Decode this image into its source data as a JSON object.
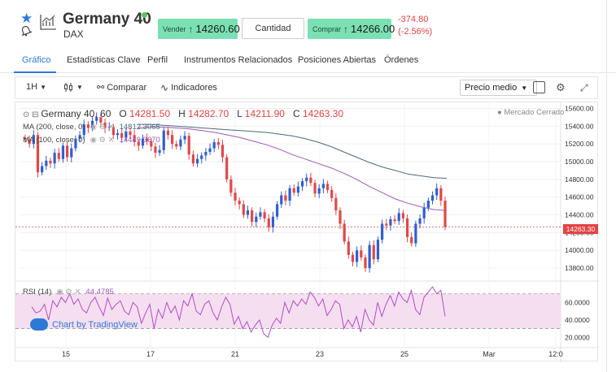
{
  "instrument": {
    "title": "Germany 40",
    "subtitle": "DAX"
  },
  "trade": {
    "sell_label": "Vender",
    "sell_price": "14260.60",
    "quantity_label": "Cantidad",
    "buy_label": "Comprar",
    "buy_price": "14266.00",
    "change_abs": "-374.80",
    "change_pct": "(-2.56%)",
    "accent_color": "#7be0b3",
    "negative_color": "#e24343"
  },
  "tabs": [
    {
      "label": "Gráfico",
      "active": true
    },
    {
      "label": "Estadísticas Clave"
    },
    {
      "label": "Perfil"
    },
    {
      "label": "Instrumentos Relacionados"
    },
    {
      "label": "Posiciones Abiertas"
    },
    {
      "label": "Órdenes"
    }
  ],
  "toolbar": {
    "interval": "1H",
    "compare": "Comparar",
    "indicators": "Indicadores",
    "price_type": "Precio medio"
  },
  "legend": {
    "symbol": "Germany 40, 60",
    "o_label": "O",
    "o_value": "14281.50",
    "h_label": "H",
    "h_value": "14282.70",
    "l_label": "L",
    "l_value": "14211.90",
    "c_label": "C",
    "c_value": "14263.30",
    "ma200_label": "MA (200, close, 0)",
    "ma200_value": "14812.3065",
    "ma100_label": "MA (100, close, 0)",
    "ma100_value": "14449.3670",
    "market_status": "Mercado Cerrado",
    "rsi_label": "RSI (14)",
    "rsi_value": "44.4785",
    "watermark": "Chart by TradingView"
  },
  "chart_data": {
    "type": "candlestick",
    "y_ticks": [
      "15600.00",
      "15400.00",
      "15200.00",
      "15000.00",
      "14800.00",
      "14600.00",
      "14400.00",
      "14200.00",
      "14000.00",
      "13800.00"
    ],
    "ylim": [
      13700,
      15650
    ],
    "x_ticks": [
      "15",
      "17",
      "21",
      "23",
      "25",
      "Mar",
      "12:0"
    ],
    "last_price": "14263.30",
    "rsi": {
      "y_ticks": [
        "60.0000",
        "40.0000",
        "20.0000"
      ],
      "ylim": [
        10,
        80
      ],
      "levels": [
        70,
        30
      ],
      "last": 44.4785
    },
    "series": [
      {
        "name": "MA (200, close, 0)",
        "color": "#4a6c7a"
      },
      {
        "name": "MA (100, close, 0)",
        "color": "#9b59b6"
      }
    ],
    "close_path": [
      15250,
      15200,
      15300,
      14880,
      14950,
      15010,
      14980,
      15100,
      15030,
      15180,
      15050,
      15150,
      15260,
      15300,
      15420,
      15380,
      15460,
      15500,
      15440,
      15380,
      15390,
      15300,
      15320,
      15270,
      15340,
      15300,
      15220,
      15180,
      15260,
      15230,
      15170,
      15100,
      15130,
      15350,
      15300,
      15200,
      15170,
      15250,
      15290,
      15080,
      14980,
      15030,
      15070,
      15110,
      15150,
      15220,
      15190,
      15050,
      14800,
      14650,
      14560,
      14520,
      14400,
      14450,
      14320,
      14380,
      14430,
      14360,
      14260,
      14380,
      14520,
      14620,
      14560,
      14700,
      14650,
      14720,
      14780,
      14820,
      14760,
      14640,
      14700,
      14750,
      14680,
      14590,
      14450,
      14300,
      14100,
      13950,
      13870,
      14000,
      13920,
      13800,
      14060,
      13900,
      14120,
      14300,
      14280,
      14350,
      14330,
      14420,
      14360,
      14150,
      14080,
      14300,
      14360,
      14480,
      14560,
      14620,
      14700,
      14560,
      14263
    ],
    "ma200_path": [
      15420,
      15420,
      15410,
      15400,
      15390,
      15380,
      15370,
      15360,
      15350,
      15340,
      15330,
      15310,
      15290,
      15260,
      15220,
      15170,
      15110,
      15050,
      14990,
      14940,
      14900,
      14860,
      14840,
      14820,
      14812
    ],
    "ma100_path": [
      15380,
      15390,
      15390,
      15380,
      15370,
      15350,
      15330,
      15300,
      15270,
      15230,
      15190,
      15140,
      15080,
      15030,
      14980,
      14930,
      14870,
      14800,
      14720,
      14650,
      14580,
      14530,
      14490,
      14460,
      14449
    ],
    "rsi_path": [
      55,
      48,
      50,
      58,
      40,
      62,
      55,
      66,
      60,
      70,
      58,
      64,
      52,
      48,
      60,
      66,
      55,
      45,
      65,
      52,
      58,
      62,
      50,
      46,
      60,
      55,
      36,
      48,
      58,
      30,
      52,
      42,
      60,
      48,
      56,
      40,
      62,
      56,
      70,
      50,
      46,
      58,
      62,
      48,
      40,
      55,
      66,
      58,
      35,
      44,
      30,
      38,
      26,
      34,
      40,
      24,
      20,
      34,
      42,
      36,
      60,
      48,
      62,
      56,
      64,
      58,
      72,
      66,
      56,
      64,
      45,
      52,
      62,
      58,
      30,
      40,
      32,
      44,
      26,
      52,
      40,
      34,
      60,
      44,
      58,
      68,
      56,
      72,
      64,
      60,
      74,
      52,
      46,
      66,
      72,
      78,
      70,
      74,
      44
    ]
  }
}
